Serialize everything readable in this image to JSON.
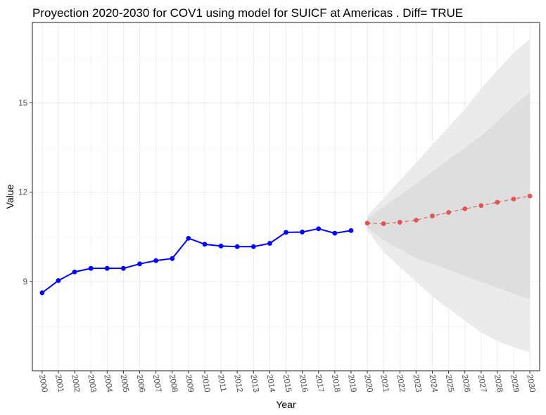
{
  "chart_data": {
    "type": "line",
    "title": "Proyection 2020-2030 for COV1 using model for SUICF at Americas . Diff= TRUE",
    "xlabel": "Year",
    "ylabel": "Value",
    "xlim": [
      1999.4,
      2030.6
    ],
    "ylim": [
      6.0,
      17.7
    ],
    "y_ticks": [
      9,
      12,
      15
    ],
    "x_ticks": [
      2000,
      2001,
      2002,
      2003,
      2004,
      2005,
      2006,
      2007,
      2008,
      2009,
      2010,
      2011,
      2012,
      2013,
      2014,
      2015,
      2016,
      2017,
      2018,
      2019,
      2020,
      2021,
      2022,
      2023,
      2024,
      2025,
      2026,
      2027,
      2028,
      2029,
      2030
    ],
    "grid": true,
    "legend": "none",
    "series": [
      {
        "role": "historical",
        "color": "#0000ff",
        "x": [
          2000,
          2001,
          2002,
          2003,
          2004,
          2005,
          2006,
          2007,
          2008,
          2009,
          2010,
          2011,
          2012,
          2013,
          2014,
          2015,
          2016,
          2017,
          2018,
          2019
        ],
        "values": [
          8.62,
          9.03,
          9.32,
          9.44,
          9.44,
          9.44,
          9.59,
          9.7,
          9.77,
          10.45,
          10.25,
          10.19,
          10.17,
          10.17,
          10.28,
          10.65,
          10.66,
          10.77,
          10.62,
          10.71
        ]
      },
      {
        "role": "forecast",
        "color": "#e05555",
        "x": [
          2020,
          2021,
          2022,
          2023,
          2024,
          2025,
          2026,
          2027,
          2028,
          2029,
          2030
        ],
        "values": [
          10.96,
          10.94,
          10.99,
          11.06,
          11.2,
          11.32,
          11.44,
          11.55,
          11.66,
          11.77,
          11.87
        ]
      }
    ],
    "bands": [
      {
        "role": "95% interval",
        "color": "#ebebeb",
        "x": [
          2020,
          2021,
          2022,
          2023,
          2024,
          2025,
          2026,
          2027,
          2028,
          2029,
          2030
        ],
        "lower": [
          10.7,
          9.99,
          9.49,
          8.99,
          8.49,
          8.09,
          7.69,
          7.29,
          6.99,
          6.79,
          6.62
        ],
        "upper": [
          11.22,
          11.79,
          12.39,
          12.99,
          13.59,
          14.19,
          14.79,
          15.49,
          16.09,
          16.69,
          17.15
        ]
      },
      {
        "role": "80% interval",
        "color": "#dedede",
        "x": [
          2020,
          2021,
          2022,
          2023,
          2024,
          2025,
          2026,
          2027,
          2028,
          2029,
          2030
        ],
        "lower": [
          10.8,
          10.39,
          10.09,
          9.79,
          9.59,
          9.39,
          9.19,
          8.99,
          8.79,
          8.59,
          8.4
        ],
        "upper": [
          11.12,
          11.5,
          11.89,
          12.29,
          12.69,
          13.09,
          13.49,
          13.89,
          14.39,
          14.89,
          15.35
        ]
      }
    ]
  }
}
